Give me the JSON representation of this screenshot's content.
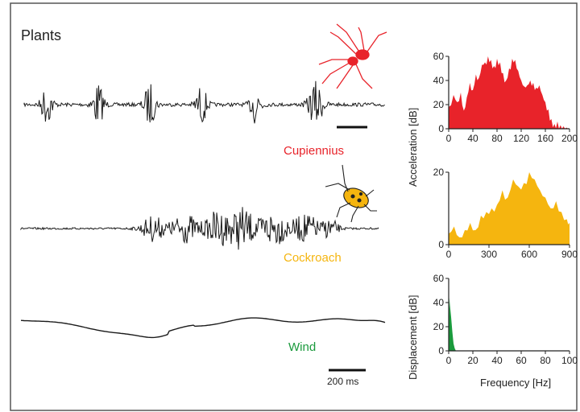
{
  "panel_title": "Plants",
  "colors": {
    "cupiennius": "#e8232a",
    "cockroach": "#f5b50f",
    "wind": "#1a9a3c",
    "trace": "#1a1a1a"
  },
  "traces": [
    {
      "label": "Cupiennius",
      "icon": "spider-icon"
    },
    {
      "label": "Cockroach",
      "icon": "cockroach-icon"
    },
    {
      "label": "Wind"
    }
  ],
  "scale_bar_label": "200 ms",
  "ylabel_acceleration": "Acceleration  [dB]",
  "ylabel_displacement": "Displacement  [dB]",
  "xlabel_frequency": "Frequency  [Hz]",
  "chart_data": [
    {
      "type": "area",
      "name": "Cupiennius",
      "xlim": [
        0,
        200
      ],
      "ylim": [
        0,
        60
      ],
      "xticks": [
        0,
        40,
        80,
        120,
        160,
        200
      ],
      "yticks": [
        0,
        20,
        40,
        60
      ],
      "x": [
        0,
        8,
        14,
        20,
        25,
        30,
        35,
        40,
        45,
        50,
        55,
        60,
        65,
        70,
        75,
        80,
        85,
        90,
        95,
        100,
        105,
        110,
        115,
        120,
        125,
        130,
        135,
        140,
        145,
        150,
        155,
        160,
        165,
        170,
        175,
        180,
        185,
        190,
        195,
        200
      ],
      "y": [
        18,
        28,
        22,
        30,
        15,
        26,
        38,
        32,
        45,
        42,
        53,
        55,
        60,
        57,
        52,
        58,
        55,
        46,
        40,
        50,
        58,
        57,
        48,
        40,
        35,
        36,
        40,
        38,
        34,
        36,
        28,
        22,
        16,
        8,
        4,
        6,
        3,
        2,
        1,
        0
      ]
    },
    {
      "type": "area",
      "name": "Cockroach",
      "xlim": [
        0,
        900
      ],
      "ylim": [
        0,
        20
      ],
      "xticks": [
        0,
        300,
        600,
        900
      ],
      "yticks": [
        0,
        20
      ],
      "x": [
        0,
        40,
        80,
        120,
        160,
        200,
        240,
        280,
        320,
        360,
        400,
        440,
        480,
        520,
        560,
        600,
        640,
        680,
        720,
        760,
        800,
        840,
        880,
        900
      ],
      "y": [
        3,
        5,
        2,
        4,
        6,
        4,
        8,
        9,
        10,
        11,
        15,
        13,
        18,
        16,
        17,
        20,
        18,
        15,
        13,
        10,
        12,
        9,
        7,
        6
      ]
    },
    {
      "type": "area",
      "name": "Wind",
      "xlim": [
        0,
        100
      ],
      "ylim": [
        0,
        60
      ],
      "xticks": [
        0,
        20,
        40,
        60,
        80,
        100
      ],
      "yticks": [
        0,
        20,
        40,
        60
      ],
      "x": [
        0,
        0.5,
        1,
        2,
        3,
        4,
        5,
        6
      ],
      "y": [
        0,
        44,
        38,
        28,
        16,
        6,
        2,
        0
      ]
    }
  ]
}
